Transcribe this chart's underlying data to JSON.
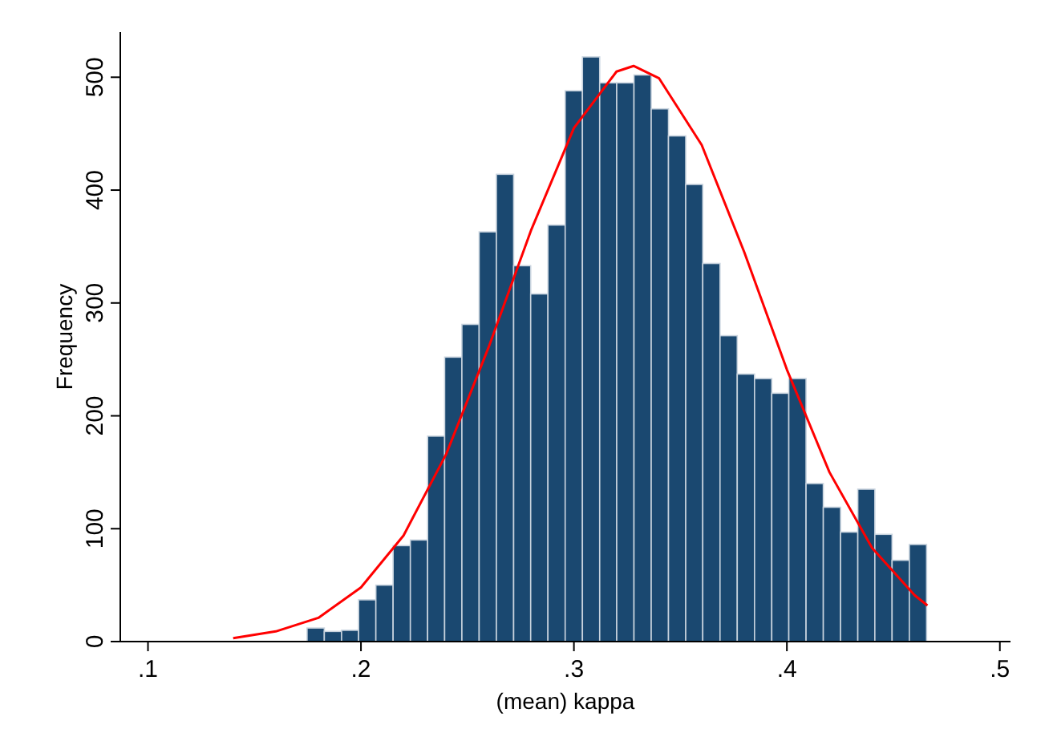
{
  "chart_data": {
    "type": "histogram",
    "xlabel": "(mean) kappa",
    "ylabel": "Frequency",
    "bins": [
      0.1747,
      0.1828,
      0.1909,
      0.1989,
      0.207,
      0.2151,
      0.2232,
      0.2313,
      0.2393,
      0.2474,
      0.2555,
      0.2636,
      0.2717,
      0.2797,
      0.2878,
      0.2959,
      0.304,
      0.3121,
      0.3201,
      0.3282,
      0.3363,
      0.3444,
      0.3525,
      0.3605,
      0.3686,
      0.3767,
      0.3848,
      0.3929,
      0.4009,
      0.409,
      0.4171,
      0.4252,
      0.4333,
      0.4413,
      0.4494,
      0.4575,
      0.4656
    ],
    "values": [
      12,
      9,
      10,
      37,
      50,
      85,
      90,
      182,
      252,
      281,
      363,
      414,
      333,
      308,
      369,
      488,
      518,
      495,
      495,
      502,
      472,
      448,
      405,
      335,
      271,
      237,
      233,
      220,
      233,
      140,
      119,
      97,
      135,
      95,
      72,
      86
    ],
    "color": "#1a4870",
    "series": [
      {
        "type": "line",
        "color": "#ff0000",
        "x": [
          0.14,
          0.16,
          0.18,
          0.2,
          0.22,
          0.24,
          0.26,
          0.28,
          0.3,
          0.32,
          0.328,
          0.34,
          0.36,
          0.38,
          0.4,
          0.42,
          0.44,
          0.46,
          0.466
        ],
        "values": [
          3,
          9,
          21,
          48,
          94,
          166,
          261,
          365,
          455,
          505,
          510,
          499,
          440,
          345,
          241,
          150,
          83,
          41,
          32
        ]
      }
    ],
    "xlim": [
      0.087,
      0.505
    ],
    "ylim": [
      0,
      540
    ],
    "xticks": [
      {
        "value": 0.1,
        "label": ".1"
      },
      {
        "value": 0.2,
        "label": ".2"
      },
      {
        "value": 0.3,
        "label": ".3"
      },
      {
        "value": 0.4,
        "label": ".4"
      },
      {
        "value": 0.5,
        "label": ".5"
      }
    ],
    "yticks": [
      0,
      100,
      200,
      300,
      400,
      500
    ],
    "grid": false,
    "marker": "none",
    "line_style": "solid"
  }
}
